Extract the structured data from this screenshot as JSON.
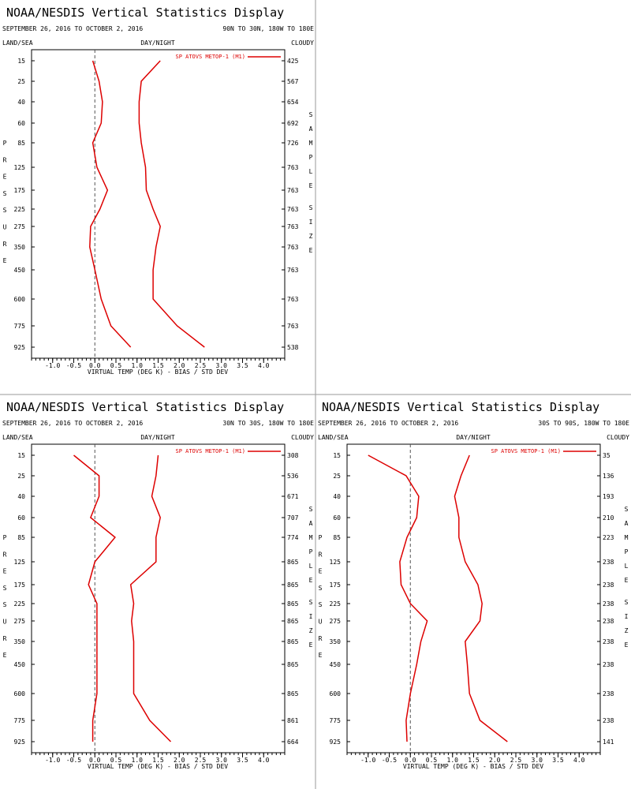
{
  "colors": {
    "series": "#dd0000",
    "text": "#000000",
    "grid": "#888888",
    "zero_line": "#555555"
  },
  "chart_data": [
    {
      "type": "line",
      "title": "NOAA/NESDIS Vertical Statistics Display",
      "date_range": "SEPTEMBER 26, 2016 TO OCTOBER 2, 2016",
      "region": "90N TO 30N, 180W TO 180E",
      "left_corner": "LAND/SEA",
      "center_label": "DAY/NIGHT",
      "right_corner": "CLOUDY",
      "ylabel": "PRESSURE",
      "y2label": "SAMPLE SIZE",
      "xlabel": "VIRTUAL TEMP (DEG K) - BIAS / STD DEV",
      "xlim": [
        -1.5,
        4.5
      ],
      "xticks": [
        "-1.0",
        "-0.5",
        "0.0",
        "0.5",
        "1.0",
        "1.5",
        "2.0",
        "2.5",
        "3.0",
        "3.5",
        "4.0"
      ],
      "pressure_levels": [
        "15",
        "25",
        "40",
        "60",
        "85",
        "125",
        "175",
        "225",
        "275",
        "350",
        "450",
        "600",
        "775",
        "925"
      ],
      "sample_size": [
        "425",
        "567",
        "654",
        "692",
        "726",
        "763",
        "763",
        "763",
        "763",
        "763",
        "763",
        "763",
        "763",
        "538"
      ],
      "legend": "SP ATOVS METOP-1 (M1)",
      "series": [
        {
          "name": "bias",
          "values": [
            -0.05,
            0.1,
            0.18,
            0.15,
            -0.05,
            0.05,
            0.3,
            0.12,
            -0.1,
            -0.12,
            0.0,
            0.15,
            0.38,
            0.85
          ]
        },
        {
          "name": "std dev",
          "values": [
            1.55,
            1.1,
            1.05,
            1.05,
            1.1,
            1.2,
            1.22,
            1.38,
            1.55,
            1.45,
            1.38,
            1.38,
            1.95,
            2.6
          ]
        }
      ]
    },
    {
      "type": "line",
      "title": "NOAA/NESDIS Vertical Statistics Display",
      "date_range": "SEPTEMBER 26, 2016 TO OCTOBER 2, 2016",
      "region": "30N TO 30S, 180W TO 180E",
      "left_corner": "LAND/SEA",
      "center_label": "DAY/NIGHT",
      "right_corner": "CLOUDY",
      "ylabel": "PRESSURE",
      "y2label": "SAMPLE SIZE",
      "xlabel": "VIRTUAL TEMP (DEG K) - BIAS / STD DEV",
      "xlim": [
        -1.5,
        4.5
      ],
      "xticks": [
        "-1.0",
        "-0.5",
        "0.0",
        "0.5",
        "1.0",
        "1.5",
        "2.0",
        "2.5",
        "3.0",
        "3.5",
        "4.0"
      ],
      "pressure_levels": [
        "15",
        "25",
        "40",
        "60",
        "85",
        "125",
        "175",
        "225",
        "275",
        "350",
        "450",
        "600",
        "775",
        "925"
      ],
      "sample_size": [
        "308",
        "536",
        "671",
        "707",
        "774",
        "865",
        "865",
        "865",
        "865",
        "865",
        "865",
        "865",
        "861",
        "664"
      ],
      "legend": "SP ATOVS METOP-1 (M1)",
      "series": [
        {
          "name": "bias",
          "values": [
            -0.5,
            0.1,
            0.1,
            -0.1,
            0.48,
            0.0,
            -0.15,
            0.05,
            0.05,
            0.05,
            0.05,
            0.05,
            -0.05,
            -0.05
          ]
        },
        {
          "name": "std dev",
          "values": [
            1.5,
            1.45,
            1.35,
            1.55,
            1.45,
            1.45,
            0.85,
            0.92,
            0.87,
            0.92,
            0.92,
            0.92,
            1.3,
            1.8
          ]
        }
      ]
    },
    {
      "type": "line",
      "title": "NOAA/NESDIS Vertical Statistics Display",
      "date_range": "SEPTEMBER 26, 2016 TO OCTOBER 2, 2016",
      "region": "30S TO 90S, 180W TO 180E",
      "left_corner": "LAND/SEA",
      "center_label": "DAY/NIGHT",
      "right_corner": "CLOUDY",
      "ylabel": "PRESSURE",
      "y2label": "SAMPLE SIZE",
      "xlabel": "VIRTUAL TEMP (DEG K) - BIAS / STD DEV",
      "xlim": [
        -1.5,
        4.5
      ],
      "xticks": [
        "-1.0",
        "-0.5",
        "0.0",
        "0.5",
        "1.0",
        "1.5",
        "2.0",
        "2.5",
        "3.0",
        "3.5",
        "4.0"
      ],
      "pressure_levels": [
        "15",
        "25",
        "40",
        "60",
        "85",
        "125",
        "175",
        "225",
        "275",
        "350",
        "450",
        "600",
        "775",
        "925"
      ],
      "sample_size": [
        "35",
        "136",
        "193",
        "210",
        "223",
        "238",
        "238",
        "238",
        "238",
        "238",
        "238",
        "238",
        "238",
        "141"
      ],
      "legend": "SP ATOVS METOP-1 (M1)",
      "series": [
        {
          "name": "bias",
          "values": [
            -1.0,
            -0.1,
            0.2,
            0.15,
            -0.08,
            -0.25,
            -0.22,
            0.0,
            0.4,
            0.25,
            0.15,
            0.0,
            -0.1,
            -0.08
          ]
        },
        {
          "name": "std dev",
          "values": [
            1.4,
            1.2,
            1.05,
            1.15,
            1.15,
            1.3,
            1.6,
            1.7,
            1.65,
            1.3,
            1.35,
            1.4,
            1.65,
            2.3
          ]
        }
      ]
    }
  ]
}
